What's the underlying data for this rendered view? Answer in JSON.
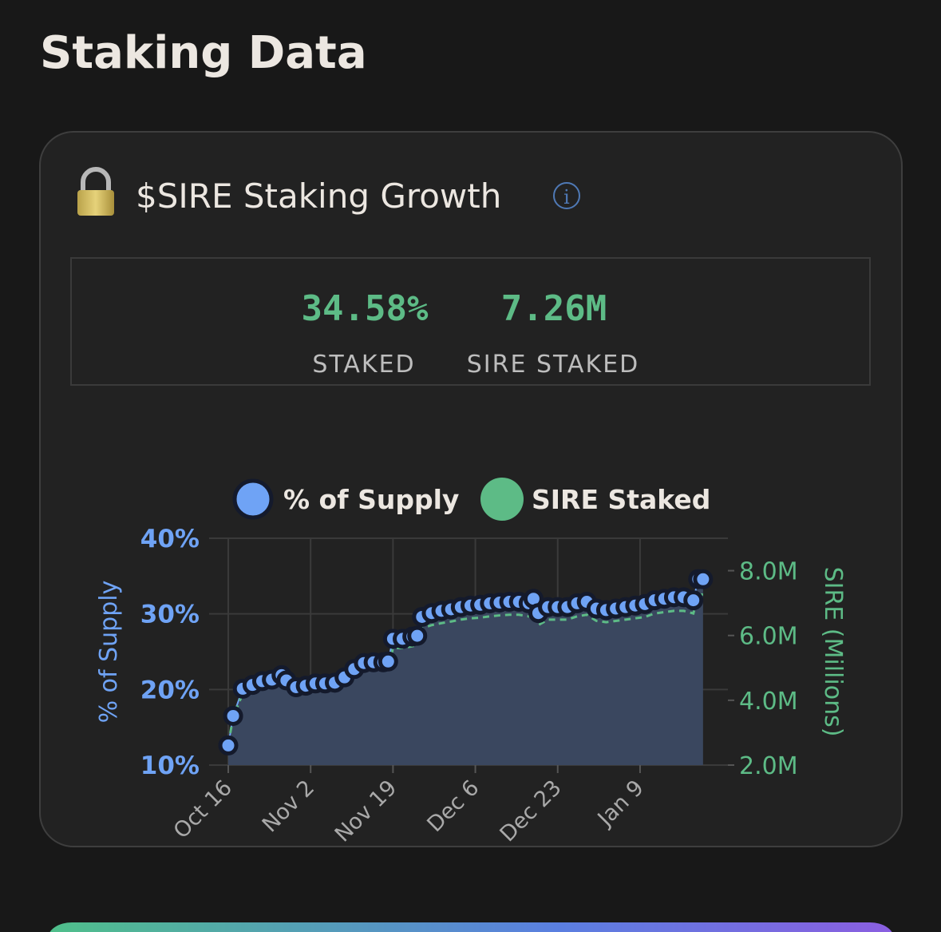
{
  "page": {
    "title": "Staking Data",
    "card_title": "$SIRE Staking Growth",
    "stats": [
      {
        "value": "34.58%",
        "label": "STAKED"
      },
      {
        "value": "7.26M",
        "label": "SIRE STAKED"
      }
    ]
  },
  "chart_data": {
    "type": "line",
    "x": [
      "Oct 16",
      "Oct 17",
      "Oct 19",
      "Oct 21",
      "Oct 23",
      "Oct 25",
      "Oct 27",
      "Oct 28",
      "Oct 30",
      "Nov 1",
      "Nov 3",
      "Nov 5",
      "Nov 7",
      "Nov 9",
      "Nov 11",
      "Nov 13",
      "Nov 15",
      "Nov 17",
      "Nov 18",
      "Nov 19",
      "Nov 21",
      "Nov 23",
      "Nov 24",
      "Nov 25",
      "Nov 27",
      "Nov 29",
      "Dec 1",
      "Dec 3",
      "Dec 5",
      "Dec 7",
      "Dec 9",
      "Dec 11",
      "Dec 13",
      "Dec 15",
      "Dec 17",
      "Dec 18",
      "Dec 19",
      "Dec 21",
      "Dec 23",
      "Dec 25",
      "Dec 27",
      "Dec 29",
      "Dec 31",
      "Jan 2",
      "Jan 4",
      "Jan 6",
      "Jan 8",
      "Jan 10",
      "Jan 12",
      "Jan 14",
      "Jan 16",
      "Jan 18",
      "Jan 20",
      "Jan 21",
      "Jan 22"
    ],
    "series": [
      {
        "name": "% of Supply",
        "color": "#6fa3f5",
        "area_color": "#3a475f",
        "markers": true,
        "values": [
          12.6,
          16.5,
          20.1,
          20.6,
          21.1,
          21.3,
          21.9,
          21.2,
          20.3,
          20.5,
          20.8,
          20.8,
          20.9,
          21.6,
          22.7,
          23.5,
          23.6,
          23.6,
          23.7,
          26.7,
          26.7,
          27.0,
          27.1,
          29.6,
          30.1,
          30.4,
          30.6,
          30.9,
          31.1,
          31.2,
          31.4,
          31.5,
          31.6,
          31.6,
          31.4,
          32.0,
          30.1,
          30.9,
          30.9,
          30.9,
          31.4,
          31.6,
          30.7,
          30.5,
          30.7,
          30.9,
          31.1,
          31.3,
          31.8,
          32.0,
          32.2,
          32.2,
          31.8,
          34.6,
          34.58
        ]
      },
      {
        "name": "SIRE Staked",
        "color": "#5dbb86",
        "axis": "y2",
        "dashed": true,
        "values": [
          2.65,
          3.47,
          4.22,
          4.33,
          4.43,
          4.47,
          4.6,
          4.45,
          4.26,
          4.31,
          4.37,
          4.37,
          4.39,
          4.54,
          4.77,
          4.94,
          4.96,
          4.96,
          4.98,
          5.61,
          5.61,
          5.67,
          5.69,
          6.22,
          6.32,
          6.38,
          6.43,
          6.49,
          6.53,
          6.55,
          6.59,
          6.62,
          6.64,
          6.64,
          6.59,
          6.72,
          6.32,
          6.49,
          6.49,
          6.49,
          6.59,
          6.64,
          6.45,
          6.41,
          6.45,
          6.49,
          6.53,
          6.57,
          6.68,
          6.72,
          6.76,
          6.76,
          6.68,
          7.27,
          7.26
        ]
      }
    ],
    "ylabel": "% of Supply",
    "y2label": "SIRE (Millions)",
    "ylim": [
      10,
      40
    ],
    "yticks": [
      {
        "value": 10,
        "label": "10%"
      },
      {
        "value": 20,
        "label": "20%"
      },
      {
        "value": 30,
        "label": "30%"
      },
      {
        "value": 40,
        "label": "40%"
      }
    ],
    "y2lim": [
      2,
      9
    ],
    "y2ticks": [
      {
        "value": 2,
        "label": "2.0M"
      },
      {
        "value": 4,
        "label": "4.0M"
      },
      {
        "value": 6,
        "label": "6.0M"
      },
      {
        "value": 8,
        "label": "8.0M"
      }
    ],
    "xticks": [
      "Oct 16",
      "Nov 2",
      "Nov 19",
      "Dec 6",
      "Dec 23",
      "Jan 9"
    ],
    "grid": true
  }
}
